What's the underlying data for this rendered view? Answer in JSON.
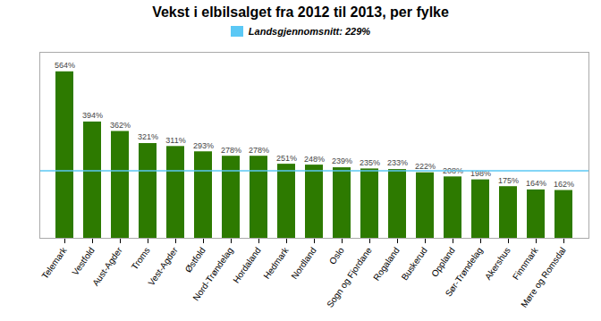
{
  "chart_data": {
    "type": "bar",
    "title": "Vekst i elbilsalget fra 2012 til 2013, per fylke",
    "categories": [
      "Telemark",
      "Vestfold",
      "Aust-Agder",
      "Troms",
      "Vest-Agder",
      "Østfold",
      "Nord-Trøndelag",
      "Hordaland",
      "Hedmark",
      "Nordland",
      "Oslo",
      "Sogn og Fjordane",
      "Rogaland",
      "Buskerud",
      "Oppland",
      "Sør-Trøndelag",
      "Akershus",
      "Finnmark",
      "Møre og Romsdal"
    ],
    "values": [
      564,
      394,
      362,
      321,
      311,
      293,
      278,
      278,
      251,
      248,
      239,
      235,
      233,
      222,
      208,
      198,
      175,
      164,
      162
    ],
    "value_labels": [
      "564%",
      "394%",
      "362%",
      "321%",
      "311%",
      "293%",
      "278%",
      "278%",
      "251%",
      "248%",
      "239%",
      "235%",
      "233%",
      "222%",
      "208%",
      "198%",
      "175%",
      "164%",
      "162%"
    ],
    "color": "#2d7a00",
    "data_labels": true,
    "reference_line": {
      "value": 229,
      "label": "Landsgjennomsnitt: 229%",
      "color": "#5bc8f5"
    },
    "legend": "upper center",
    "ylim": [
      0,
      630
    ],
    "grid": false,
    "tick_labels": "x"
  }
}
